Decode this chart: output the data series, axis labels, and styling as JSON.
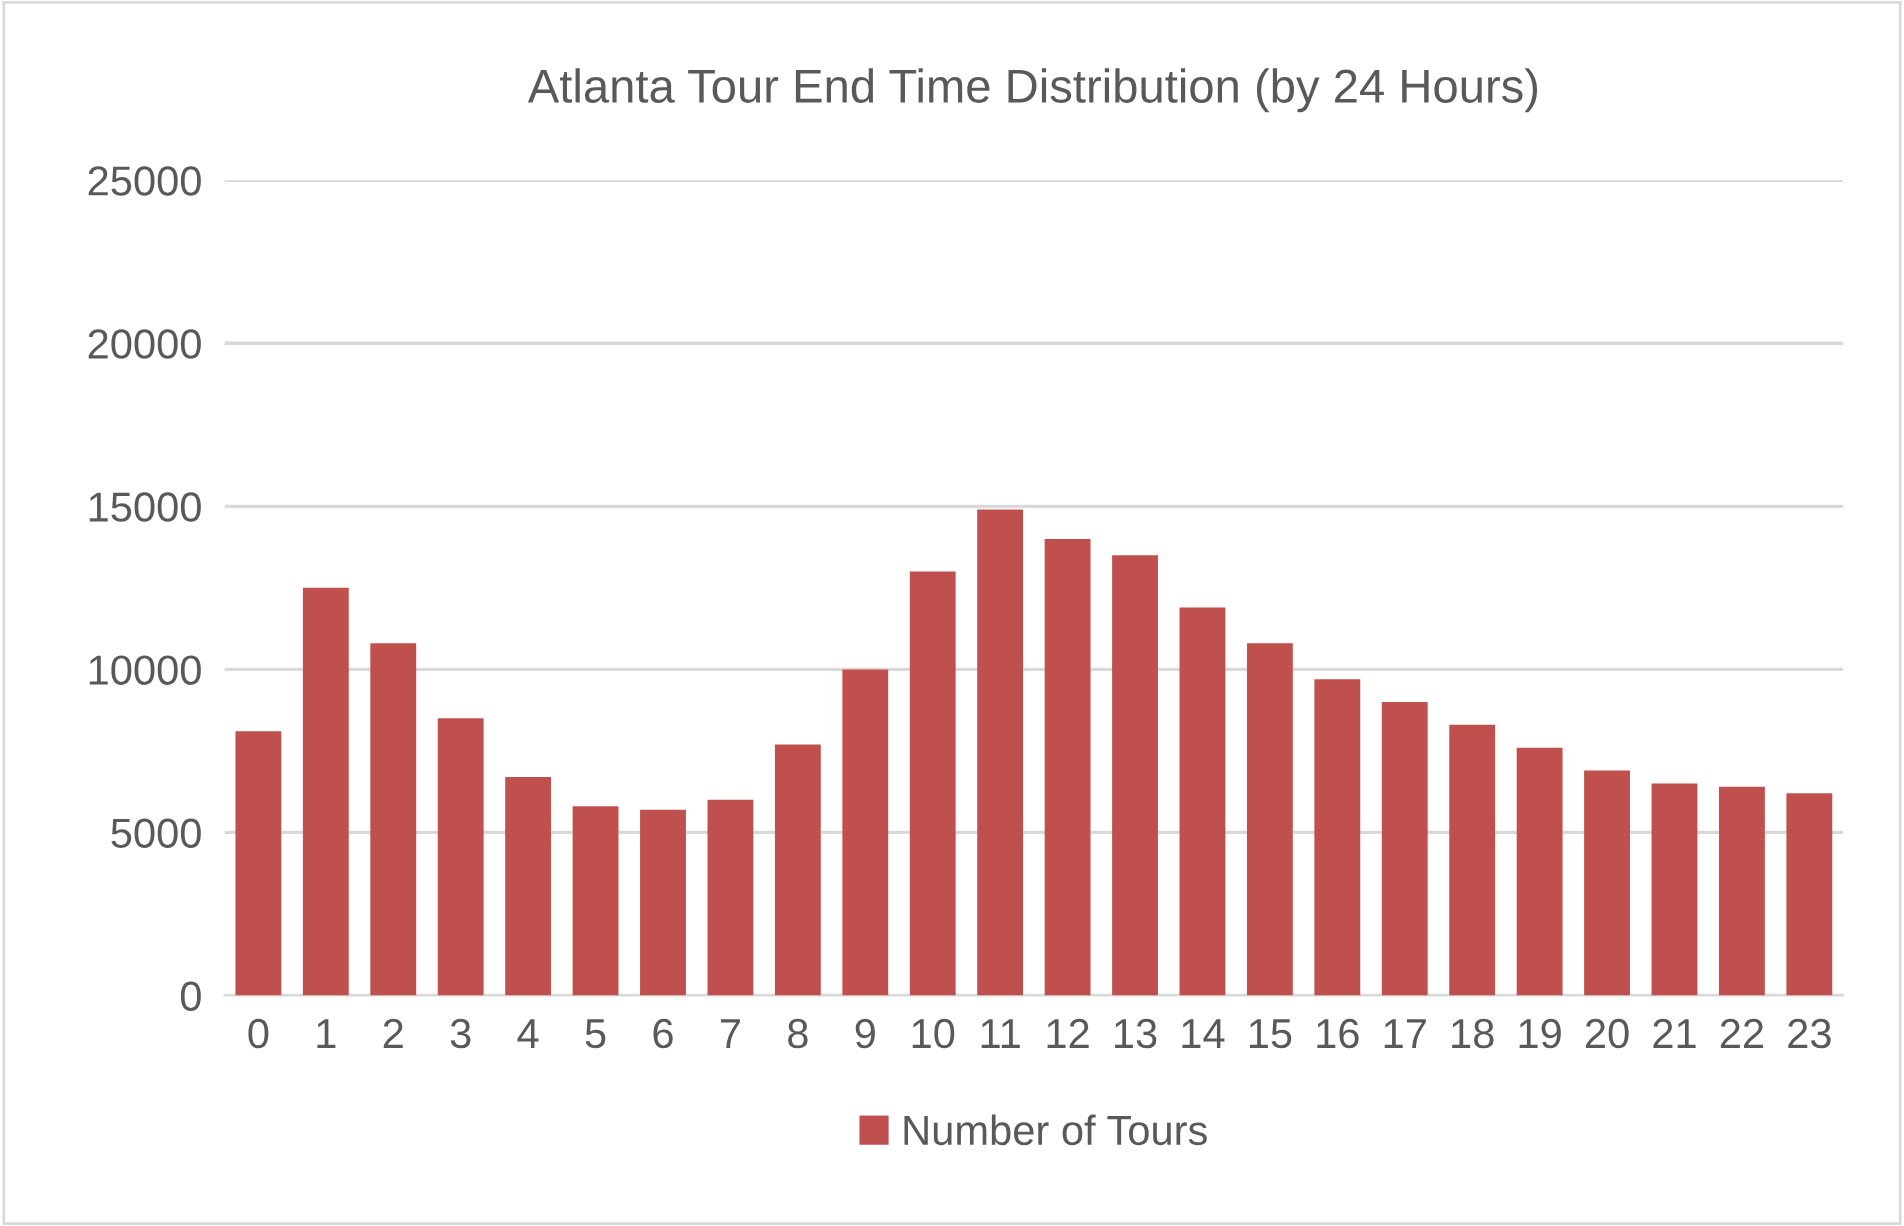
{
  "chart_data": {
    "type": "bar",
    "title": "Atlanta Tour End Time Distribution (by 24 Hours)",
    "categories": [
      "0",
      "1",
      "2",
      "3",
      "4",
      "5",
      "6",
      "7",
      "8",
      "9",
      "10",
      "11",
      "12",
      "13",
      "14",
      "15",
      "16",
      "17",
      "18",
      "19",
      "20",
      "21",
      "22",
      "23"
    ],
    "series": [
      {
        "name": "Number of Tours",
        "color": "#c0504d",
        "values": [
          8100,
          12500,
          10800,
          8500,
          6700,
          5800,
          5700,
          6000,
          7700,
          10000,
          13000,
          14900,
          14000,
          13500,
          11900,
          10800,
          9700,
          9000,
          8300,
          7600,
          6900,
          6500,
          6400,
          6200
        ]
      }
    ],
    "ylim": [
      0,
      25000
    ],
    "yticks": [
      0,
      5000,
      10000,
      15000,
      20000,
      25000
    ],
    "grid": "y",
    "legend": "bottom"
  }
}
